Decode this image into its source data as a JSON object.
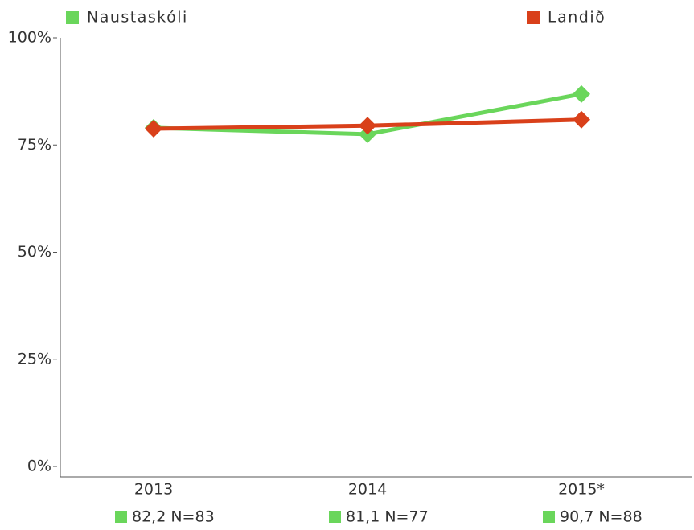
{
  "chart_data": {
    "type": "line",
    "categories": [
      "2013",
      "2014",
      "2015*"
    ],
    "series": [
      {
        "name": "Naustaskóli",
        "color": "#6ad65b",
        "values": [
          79.0,
          77.5,
          86.9
        ]
      },
      {
        "name": "Landið",
        "color": "#d9401a",
        "values": [
          78.8,
          79.5,
          80.9
        ]
      }
    ],
    "ylim": [
      0,
      100
    ],
    "yticks": [
      {
        "value": 0,
        "label": "0%"
      },
      {
        "value": 25,
        "label": "25%"
      },
      {
        "value": 50,
        "label": "50%"
      },
      {
        "value": 75,
        "label": "75%"
      },
      {
        "value": 100,
        "label": "100%"
      }
    ],
    "annotations": [
      "82,2 N=83",
      "81,1 N=77",
      "90,7 N=88"
    ],
    "legend": "top"
  }
}
